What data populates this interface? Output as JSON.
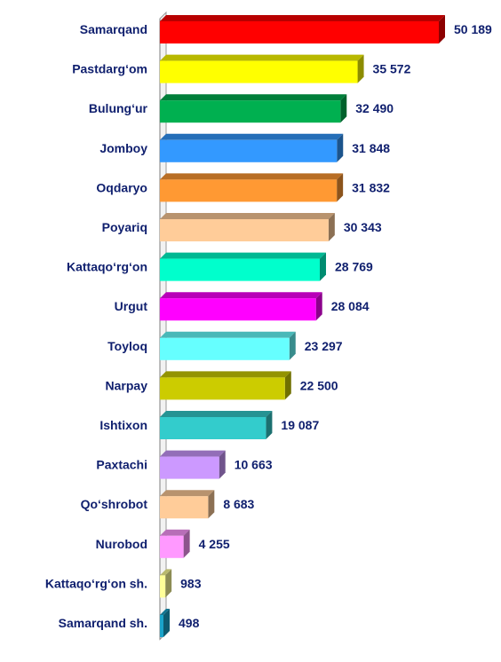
{
  "chart_data": {
    "type": "bar",
    "orientation": "horizontal",
    "style": "3d",
    "categories": [
      "Samarqand",
      "Pastdarg‘om",
      "Bulung‘ur",
      "Jomboy",
      "Oqdaryo",
      "Poyariq",
      "Kattaqo‘rg‘on",
      "Urgut",
      "Toyloq",
      "Narpay",
      "Ishtixon",
      "Paxtachi",
      "Qo‘shrobot",
      "Nurobod",
      "Kattaqo‘rg‘on sh.",
      "Samarqand sh."
    ],
    "values": [
      50189,
      35572,
      32490,
      31848,
      31832,
      30343,
      28769,
      28084,
      23297,
      22500,
      19087,
      10663,
      8683,
      4255,
      983,
      498
    ],
    "value_labels": [
      "50 189",
      "35 572",
      "32 490",
      "31 848",
      "31 832",
      "30 343",
      "28 769",
      "28 084",
      "23 297",
      "22 500",
      "19 087",
      "10 663",
      "8 683",
      "4 255",
      "983",
      "498"
    ],
    "bar_colors": [
      "#ff0000",
      "#ffff00",
      "#00b050",
      "#3399ff",
      "#ff9933",
      "#ffcc99",
      "#00ffcc",
      "#ff00ff",
      "#66ffff",
      "#cccc00",
      "#33cccc",
      "#cc99ff",
      "#ffcc99",
      "#ff99ff",
      "#ffff99",
      "#1aa3c9"
    ],
    "title": "",
    "xlabel": "",
    "ylabel": "",
    "xlim": [
      0,
      50189
    ],
    "grid": false,
    "legend": "none"
  }
}
